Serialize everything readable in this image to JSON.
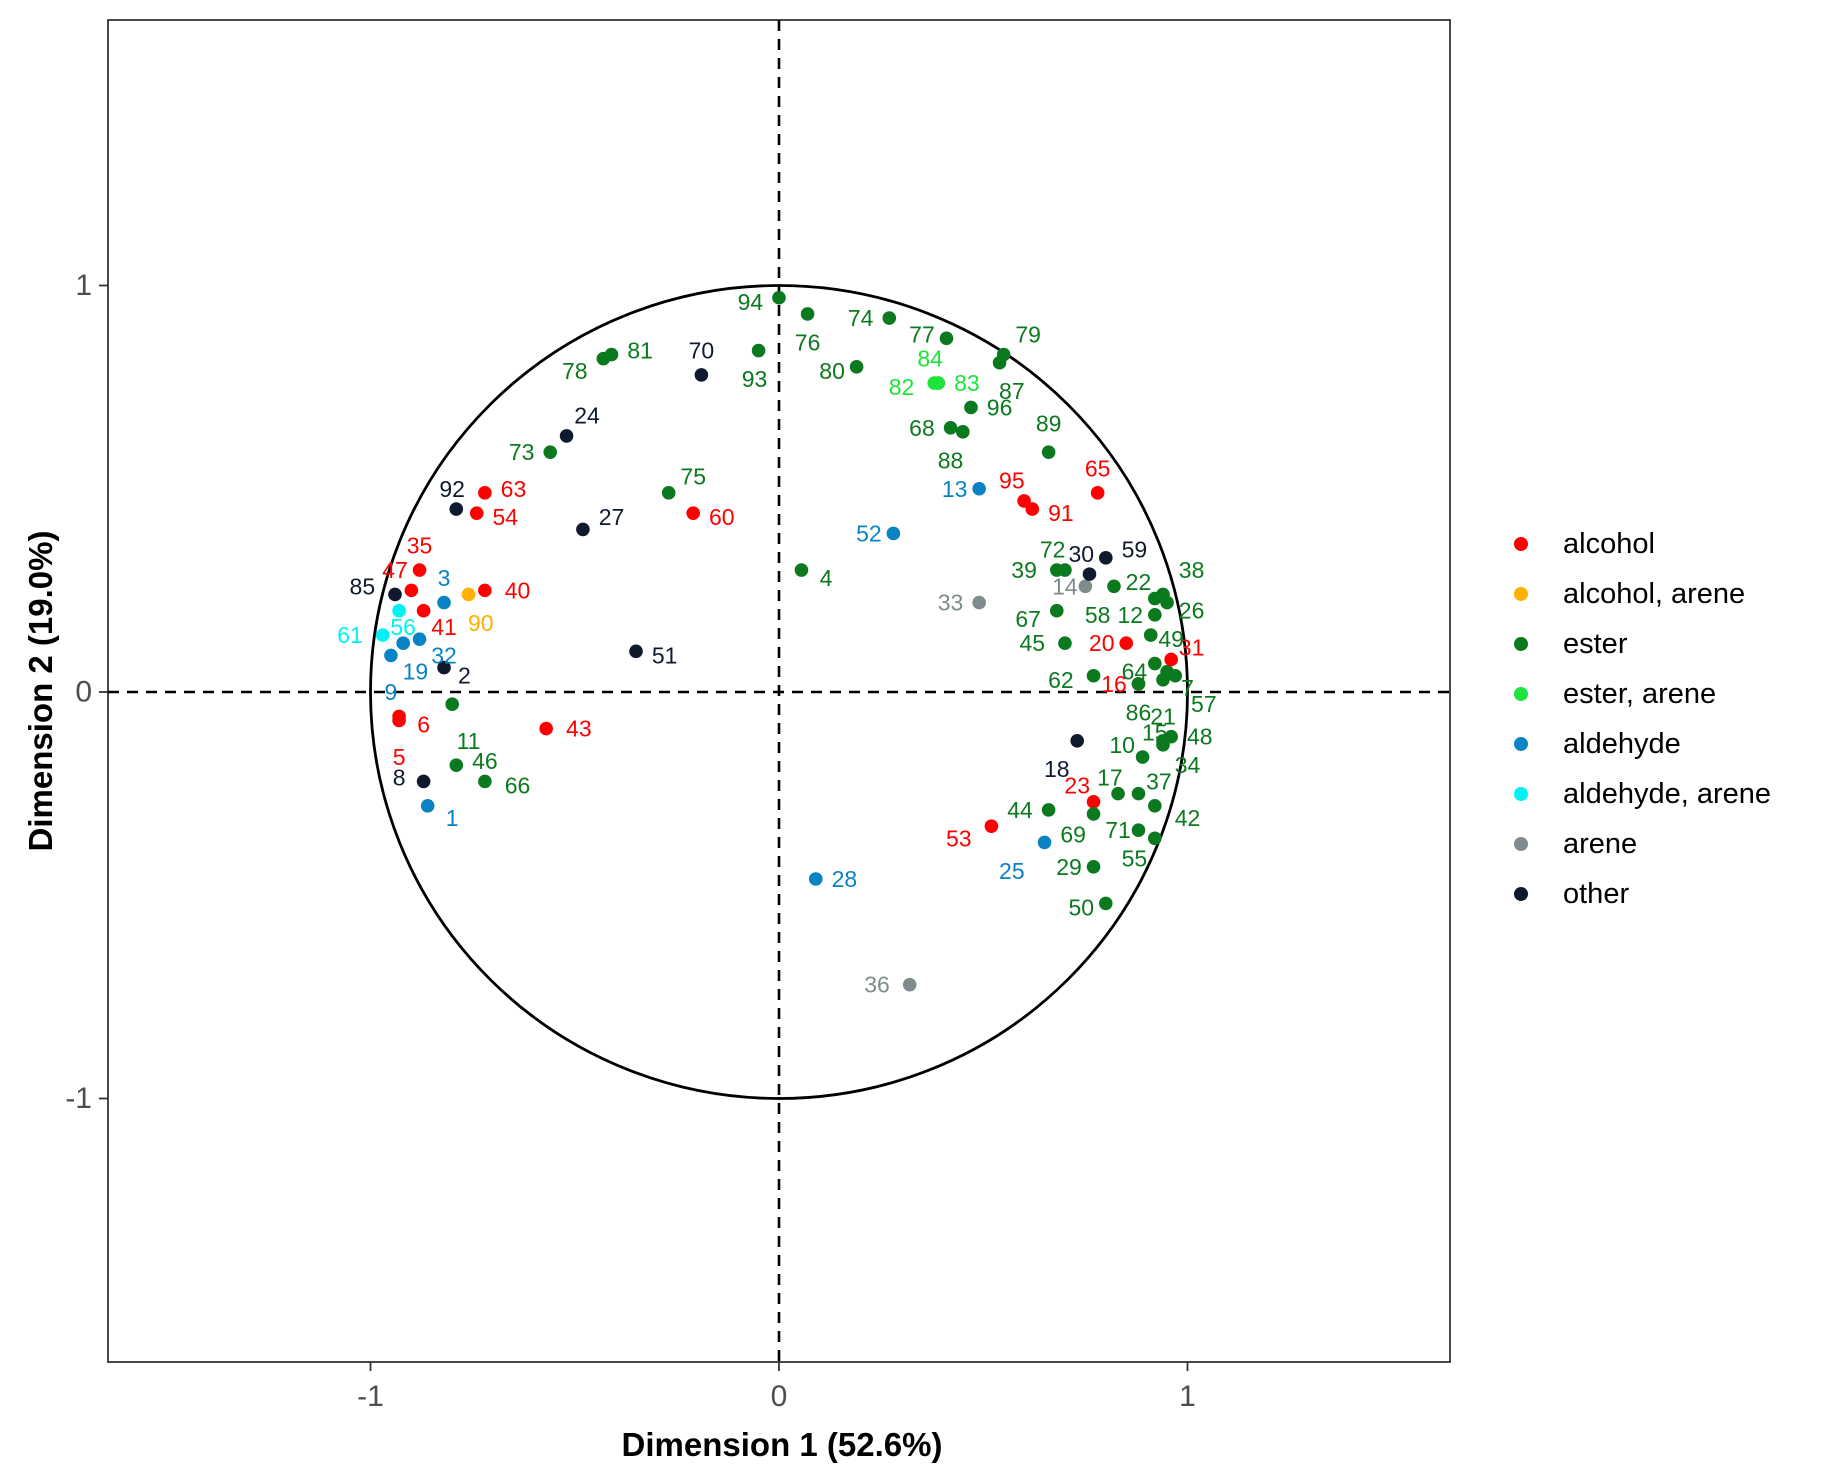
{
  "chart_data": {
    "type": "scatter",
    "title": "",
    "xlabel": "Dimension 1 (52.6%)",
    "ylabel": "Dimension 2 (19.0%)",
    "xlim": [
      -1.65,
      1.65
    ],
    "ylim": [
      -1.65,
      1.65
    ],
    "x_ticks": [
      {
        "value": -1,
        "label": "-1"
      },
      {
        "value": 0,
        "label": "0"
      },
      {
        "value": 1,
        "label": "1"
      }
    ],
    "y_ticks": [
      {
        "value": -1,
        "label": "-1"
      },
      {
        "value": 0,
        "label": "0"
      },
      {
        "value": 1,
        "label": "1"
      }
    ],
    "grid": false,
    "reference_lines": {
      "x": 0,
      "y": 0,
      "style": "dashed"
    },
    "unit_circle": true,
    "legend_position": "right",
    "legend": [
      {
        "name": "alcohol",
        "color": "#ff0000"
      },
      {
        "name": "alcohol, arene",
        "color": "#ffb000"
      },
      {
        "name": "ester",
        "color": "#0b7a1f"
      },
      {
        "name": "ester, arene",
        "color": "#1de43a"
      },
      {
        "name": "aldehyde",
        "color": "#0a83c4"
      },
      {
        "name": "aldehyde, arene",
        "color": "#00f2f2"
      },
      {
        "name": "arene",
        "color": "#7f8c8d"
      },
      {
        "name": "other",
        "color": "#0f1a2e"
      }
    ],
    "points": [
      {
        "id": "1",
        "x": -0.86,
        "y": -0.28,
        "cat": "aldehyde",
        "lx": 0.06,
        "ly": -0.03
      },
      {
        "id": "2",
        "x": -0.82,
        "y": 0.06,
        "cat": "other",
        "lx": 0.05,
        "ly": -0.02
      },
      {
        "id": "3",
        "x": -0.82,
        "y": 0.22,
        "cat": "aldehyde",
        "lx": 0.0,
        "ly": 0.06
      },
      {
        "id": "4",
        "x": 0.055,
        "y": 0.3,
        "cat": "ester",
        "lx": 0.06,
        "ly": -0.02
      },
      {
        "id": "5",
        "x": -0.93,
        "y": -0.07,
        "cat": "alcohol",
        "lx": 0.0,
        "ly": -0.09
      },
      {
        "id": "6",
        "x": -0.93,
        "y": -0.06,
        "cat": "alcohol",
        "lx": 0.06,
        "ly": -0.02
      },
      {
        "id": "7",
        "x": 0.95,
        "y": 0.05,
        "cat": "ester",
        "lx": 0.05,
        "ly": -0.04
      },
      {
        "id": "8",
        "x": -0.87,
        "y": -0.22,
        "cat": "other",
        "lx": -0.06,
        "ly": 0.01
      },
      {
        "id": "9",
        "x": -0.95,
        "y": 0.09,
        "cat": "aldehyde",
        "lx": 0.0,
        "ly": -0.09
      },
      {
        "id": "10",
        "x": 0.89,
        "y": -0.16,
        "cat": "ester",
        "lx": -0.05,
        "ly": 0.03
      },
      {
        "id": "11",
        "x": -0.8,
        "y": -0.03,
        "cat": "ester",
        "lx": 0.04,
        "ly": -0.09
      },
      {
        "id": "12",
        "x": 0.92,
        "y": 0.19,
        "cat": "ester",
        "lx": -0.06,
        "ly": 0.0
      },
      {
        "id": "13",
        "x": 0.49,
        "y": 0.5,
        "cat": "aldehyde",
        "lx": -0.06,
        "ly": 0.0
      },
      {
        "id": "14",
        "x": 0.75,
        "y": 0.26,
        "cat": "arene",
        "lx": -0.05,
        "ly": 0.0
      },
      {
        "id": "15",
        "x": 0.94,
        "y": -0.12,
        "cat": "ester",
        "lx": -0.02,
        "ly": 0.02
      },
      {
        "id": "16",
        "x": 0.88,
        "y": 0.02,
        "cat": "alcohol",
        "lx": -0.06,
        "ly": 0.0
      },
      {
        "id": "17",
        "x": 0.83,
        "y": -0.25,
        "cat": "ester",
        "lx": -0.02,
        "ly": 0.04
      },
      {
        "id": "18",
        "x": 0.73,
        "y": -0.12,
        "cat": "other",
        "lx": -0.05,
        "ly": -0.07
      },
      {
        "id": "19",
        "x": -0.92,
        "y": 0.12,
        "cat": "aldehyde",
        "lx": 0.03,
        "ly": -0.07
      },
      {
        "id": "20",
        "x": 0.85,
        "y": 0.12,
        "cat": "alcohol",
        "lx": -0.06,
        "ly": 0.0
      },
      {
        "id": "21",
        "x": 0.94,
        "y": 0.03,
        "cat": "ester",
        "lx": 0.0,
        "ly": -0.09
      },
      {
        "id": "22",
        "x": 0.92,
        "y": 0.23,
        "cat": "ester",
        "lx": -0.04,
        "ly": 0.04
      },
      {
        "id": "23",
        "x": 0.77,
        "y": -0.27,
        "cat": "alcohol",
        "lx": -0.04,
        "ly": 0.04
      },
      {
        "id": "24",
        "x": -0.52,
        "y": 0.63,
        "cat": "other",
        "lx": 0.05,
        "ly": 0.05
      },
      {
        "id": "25",
        "x": 0.65,
        "y": -0.37,
        "cat": "aldehyde",
        "lx": -0.08,
        "ly": -0.07
      },
      {
        "id": "26",
        "x": 0.95,
        "y": 0.22,
        "cat": "ester",
        "lx": 0.06,
        "ly": -0.02
      },
      {
        "id": "27",
        "x": -0.48,
        "y": 0.4,
        "cat": "other",
        "lx": 0.07,
        "ly": 0.03
      },
      {
        "id": "28",
        "x": 0.09,
        "y": -0.46,
        "cat": "aldehyde",
        "lx": 0.07,
        "ly": 0.0
      },
      {
        "id": "29",
        "x": 0.77,
        "y": -0.43,
        "cat": "ester",
        "lx": -0.06,
        "ly": 0.0
      },
      {
        "id": "30",
        "x": 0.76,
        "y": 0.29,
        "cat": "other",
        "lx": -0.02,
        "ly": 0.05
      },
      {
        "id": "31",
        "x": 0.96,
        "y": 0.08,
        "cat": "alcohol",
        "lx": 0.05,
        "ly": 0.03
      },
      {
        "id": "32",
        "x": -0.88,
        "y": 0.13,
        "cat": "aldehyde",
        "lx": 0.06,
        "ly": -0.04
      },
      {
        "id": "33",
        "x": 0.49,
        "y": 0.22,
        "cat": "arene",
        "lx": -0.07,
        "ly": 0.0
      },
      {
        "id": "34",
        "x": 0.94,
        "y": -0.13,
        "cat": "ester",
        "lx": 0.06,
        "ly": -0.05
      },
      {
        "id": "35",
        "x": -0.88,
        "y": 0.3,
        "cat": "alcohol",
        "lx": 0.0,
        "ly": 0.06
      },
      {
        "id": "36",
        "x": 0.32,
        "y": -0.72,
        "cat": "arene",
        "lx": -0.08,
        "ly": 0.0
      },
      {
        "id": "37",
        "x": 0.88,
        "y": -0.25,
        "cat": "ester",
        "lx": 0.05,
        "ly": 0.03
      },
      {
        "id": "38",
        "x": 0.94,
        "y": 0.24,
        "cat": "ester",
        "lx": 0.07,
        "ly": 0.06
      },
      {
        "id": "39",
        "x": 0.68,
        "y": 0.3,
        "cat": "ester",
        "lx": -0.08,
        "ly": 0.0
      },
      {
        "id": "40",
        "x": -0.72,
        "y": 0.25,
        "cat": "alcohol",
        "lx": 0.08,
        "ly": 0.0
      },
      {
        "id": "41",
        "x": -0.87,
        "y": 0.2,
        "cat": "alcohol",
        "lx": 0.05,
        "ly": -0.04
      },
      {
        "id": "42",
        "x": 0.92,
        "y": -0.28,
        "cat": "ester",
        "lx": 0.08,
        "ly": -0.03
      },
      {
        "id": "43",
        "x": -0.57,
        "y": -0.09,
        "cat": "alcohol",
        "lx": 0.08,
        "ly": 0.0
      },
      {
        "id": "44",
        "x": 0.66,
        "y": -0.29,
        "cat": "ester",
        "lx": -0.07,
        "ly": 0.0
      },
      {
        "id": "45",
        "x": 0.7,
        "y": 0.12,
        "cat": "ester",
        "lx": -0.08,
        "ly": 0.0
      },
      {
        "id": "46",
        "x": -0.79,
        "y": -0.18,
        "cat": "ester",
        "lx": 0.07,
        "ly": 0.01
      },
      {
        "id": "47",
        "x": -0.9,
        "y": 0.25,
        "cat": "alcohol",
        "lx": -0.04,
        "ly": 0.05
      },
      {
        "id": "48",
        "x": 0.96,
        "y": -0.11,
        "cat": "ester",
        "lx": 0.07,
        "ly": 0.0
      },
      {
        "id": "49",
        "x": 0.91,
        "y": 0.14,
        "cat": "ester",
        "lx": 0.05,
        "ly": -0.01
      },
      {
        "id": "50",
        "x": 0.8,
        "y": -0.52,
        "cat": "ester",
        "lx": -0.06,
        "ly": -0.01
      },
      {
        "id": "51",
        "x": -0.35,
        "y": 0.1,
        "cat": "other",
        "lx": 0.07,
        "ly": -0.01
      },
      {
        "id": "52",
        "x": 0.28,
        "y": 0.39,
        "cat": "aldehyde",
        "lx": -0.06,
        "ly": 0.0
      },
      {
        "id": "53",
        "x": 0.52,
        "y": -0.33,
        "cat": "alcohol",
        "lx": -0.08,
        "ly": -0.03
      },
      {
        "id": "54",
        "x": -0.74,
        "y": 0.44,
        "cat": "alcohol",
        "lx": 0.07,
        "ly": -0.01
      },
      {
        "id": "55",
        "x": 0.92,
        "y": -0.36,
        "cat": "ester",
        "lx": -0.05,
        "ly": -0.05
      },
      {
        "id": "56",
        "x": -0.93,
        "y": 0.2,
        "cat": "aldehyde, arene",
        "lx": 0.01,
        "ly": -0.04
      },
      {
        "id": "57",
        "x": 0.97,
        "y": 0.04,
        "cat": "ester",
        "lx": 0.07,
        "ly": -0.07
      },
      {
        "id": "58",
        "x": 0.82,
        "y": 0.26,
        "cat": "ester",
        "lx": -0.04,
        "ly": -0.07
      },
      {
        "id": "59",
        "x": 0.8,
        "y": 0.33,
        "cat": "other",
        "lx": 0.07,
        "ly": 0.02
      },
      {
        "id": "60",
        "x": -0.21,
        "y": 0.44,
        "cat": "alcohol",
        "lx": 0.07,
        "ly": -0.01
      },
      {
        "id": "61",
        "x": -0.97,
        "y": 0.14,
        "cat": "aldehyde, arene",
        "lx": -0.08,
        "ly": 0.0
      },
      {
        "id": "62",
        "x": 0.77,
        "y": 0.04,
        "cat": "ester",
        "lx": -0.08,
        "ly": -0.01
      },
      {
        "id": "63",
        "x": -0.72,
        "y": 0.49,
        "cat": "alcohol",
        "lx": 0.07,
        "ly": 0.01
      },
      {
        "id": "64",
        "x": 0.92,
        "y": 0.07,
        "cat": "ester",
        "lx": -0.05,
        "ly": -0.02
      },
      {
        "id": "65",
        "x": 0.78,
        "y": 0.49,
        "cat": "alcohol",
        "lx": 0.0,
        "ly": 0.06
      },
      {
        "id": "66",
        "x": -0.72,
        "y": -0.22,
        "cat": "ester",
        "lx": 0.08,
        "ly": -0.01
      },
      {
        "id": "67",
        "x": 0.68,
        "y": 0.2,
        "cat": "ester",
        "lx": -0.07,
        "ly": -0.02
      },
      {
        "id": "68",
        "x": 0.42,
        "y": 0.65,
        "cat": "ester",
        "lx": -0.07,
        "ly": 0.0
      },
      {
        "id": "69",
        "x": 0.77,
        "y": -0.3,
        "cat": "ester",
        "lx": -0.05,
        "ly": -0.05
      },
      {
        "id": "70",
        "x": -0.19,
        "y": 0.78,
        "cat": "other",
        "lx": 0.0,
        "ly": 0.06
      },
      {
        "id": "71",
        "x": 0.88,
        "y": -0.34,
        "cat": "ester",
        "lx": -0.05,
        "ly": 0.0
      },
      {
        "id": "72",
        "x": 0.7,
        "y": 0.3,
        "cat": "ester",
        "lx": -0.03,
        "ly": 0.05
      },
      {
        "id": "73",
        "x": -0.56,
        "y": 0.59,
        "cat": "ester",
        "lx": -0.07,
        "ly": 0.0
      },
      {
        "id": "74",
        "x": 0.27,
        "y": 0.92,
        "cat": "ester",
        "lx": -0.07,
        "ly": 0.0
      },
      {
        "id": "75",
        "x": -0.27,
        "y": 0.49,
        "cat": "ester",
        "lx": 0.06,
        "ly": 0.04
      },
      {
        "id": "76",
        "x": 0.07,
        "y": 0.93,
        "cat": "ester",
        "lx": 0.0,
        "ly": -0.07
      },
      {
        "id": "77",
        "x": 0.41,
        "y": 0.87,
        "cat": "ester",
        "lx": -0.06,
        "ly": 0.01
      },
      {
        "id": "78",
        "x": -0.43,
        "y": 0.82,
        "cat": "ester",
        "lx": -0.07,
        "ly": -0.03
      },
      {
        "id": "79",
        "x": 0.55,
        "y": 0.83,
        "cat": "ester",
        "lx": 0.06,
        "ly": 0.05
      },
      {
        "id": "80",
        "x": 0.19,
        "y": 0.8,
        "cat": "ester",
        "lx": -0.06,
        "ly": -0.01
      },
      {
        "id": "81",
        "x": -0.41,
        "y": 0.83,
        "cat": "ester",
        "lx": 0.07,
        "ly": 0.01
      },
      {
        "id": "82",
        "x": 0.38,
        "y": 0.76,
        "cat": "ester, arene",
        "lx": -0.08,
        "ly": -0.01
      },
      {
        "id": "83",
        "x": 0.39,
        "y": 0.76,
        "cat": "ester, arene",
        "lx": 0.07,
        "ly": 0.0
      },
      {
        "id": "84",
        "x": 0.39,
        "y": 0.76,
        "cat": "ester, arene",
        "lx": -0.02,
        "ly": 0.06
      },
      {
        "id": "85",
        "x": -0.94,
        "y": 0.24,
        "cat": "other",
        "lx": -0.08,
        "ly": 0.02
      },
      {
        "id": "86",
        "x": 0.88,
        "y": 0.02,
        "cat": "ester",
        "lx": 0.0,
        "ly": -0.07
      },
      {
        "id": "87",
        "x": 0.54,
        "y": 0.81,
        "cat": "ester",
        "lx": 0.03,
        "ly": -0.07
      },
      {
        "id": "88",
        "x": 0.45,
        "y": 0.64,
        "cat": "ester",
        "lx": -0.03,
        "ly": -0.07
      },
      {
        "id": "89",
        "x": 0.66,
        "y": 0.59,
        "cat": "ester",
        "lx": 0.0,
        "ly": 0.07
      },
      {
        "id": "90",
        "x": -0.76,
        "y": 0.24,
        "cat": "alcohol, arene",
        "lx": 0.03,
        "ly": -0.07
      },
      {
        "id": "91",
        "x": 0.62,
        "y": 0.45,
        "cat": "alcohol",
        "lx": 0.07,
        "ly": -0.01
      },
      {
        "id": "92",
        "x": -0.79,
        "y": 0.45,
        "cat": "other",
        "lx": -0.01,
        "ly": 0.05
      },
      {
        "id": "93",
        "x": -0.05,
        "y": 0.84,
        "cat": "ester",
        "lx": -0.01,
        "ly": -0.07
      },
      {
        "id": "94",
        "x": 0.0,
        "y": 0.97,
        "cat": "ester",
        "lx": -0.07,
        "ly": -0.01
      },
      {
        "id": "95",
        "x": 0.6,
        "y": 0.47,
        "cat": "alcohol",
        "lx": -0.03,
        "ly": 0.05
      },
      {
        "id": "96",
        "x": 0.47,
        "y": 0.7,
        "cat": "ester",
        "lx": 0.07,
        "ly": 0.0
      }
    ]
  }
}
